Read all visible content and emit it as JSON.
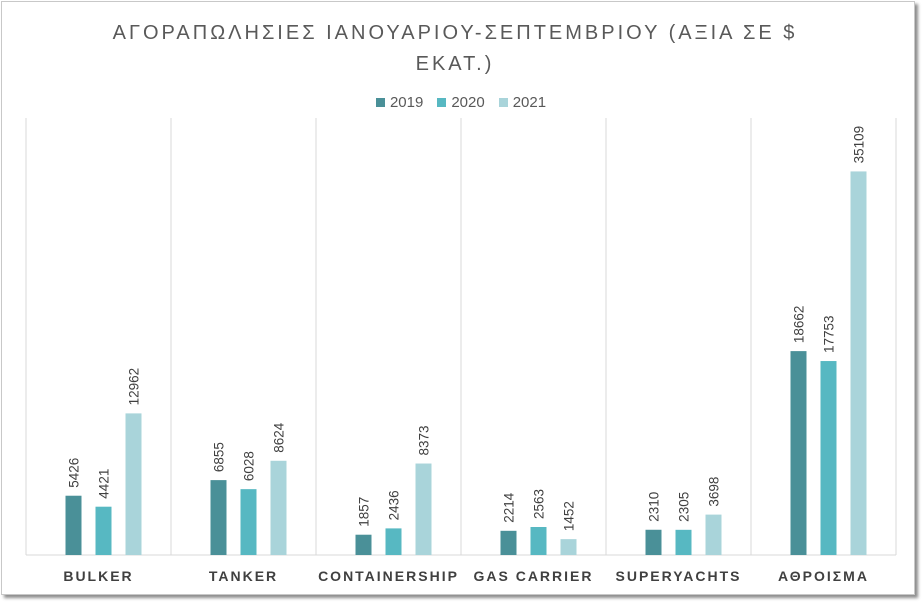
{
  "chart_data": {
    "type": "bar",
    "title": "ΑΓΟΡΑΠΩΛΗΣΙΕΣ ΙΑΝΟΥΑΡΙΟΥ-ΣΕΠΤΕΜΒΡΙΟΥ (ΑΞΙΑ ΣΕ $ ΕΚΑΤ.)",
    "categories": [
      "BULKER",
      "TANKER",
      "CONTAINERSHIP",
      "GAS CARRIER",
      "SUPERYACHTS",
      "ΑΘΡΟΙΣΜΑ"
    ],
    "series": [
      {
        "name": "2019",
        "color": "#4a9098",
        "values": [
          5426,
          6855,
          1857,
          2214,
          2310,
          18662
        ]
      },
      {
        "name": "2020",
        "color": "#57b8c2",
        "values": [
          4421,
          6028,
          2436,
          2563,
          2305,
          17753
        ]
      },
      {
        "name": "2021",
        "color": "#a9d4da",
        "values": [
          12962,
          8624,
          8373,
          1452,
          3698,
          35109
        ]
      }
    ],
    "ylim": [
      0,
      40000
    ],
    "xlabel": "",
    "ylabel": "",
    "grid": false,
    "category_separators": true,
    "legend_position": "top-center",
    "data_labels": true
  }
}
